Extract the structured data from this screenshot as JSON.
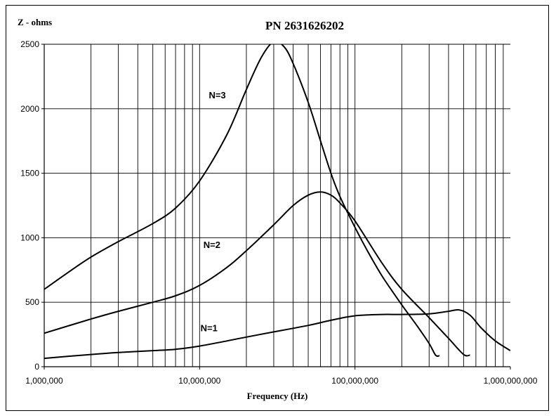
{
  "chart_data": {
    "type": "line",
    "title": "PN 2631626202",
    "xlabel": "Frequency (Hz)",
    "ylabel": "Z - ohms",
    "x_scale": "log",
    "xlim": [
      1000000,
      1000000000
    ],
    "ylim": [
      0,
      2500
    ],
    "x_tick_labels": [
      "1,000,000",
      "10,000,000",
      "100,000,000",
      "1,000,000,000"
    ],
    "y_tick_labels": [
      "0",
      "500",
      "1000",
      "1500",
      "2000",
      "2500"
    ],
    "grid": true,
    "series": [
      {
        "name": "N=3",
        "x": [
          1000000,
          1500000,
          2000000,
          3000000,
          5000000,
          7000000,
          10000000,
          15000000,
          20000000,
          25000000,
          30000000,
          35000000,
          40000000,
          50000000,
          60000000,
          70000000,
          80000000,
          100000000,
          120000000,
          150000000,
          200000000,
          250000000,
          300000000,
          330000000,
          350000000
        ],
        "y": [
          600,
          750,
          850,
          970,
          1110,
          1230,
          1440,
          1800,
          2150,
          2400,
          2520,
          2480,
          2350,
          2050,
          1750,
          1500,
          1320,
          1080,
          900,
          700,
          480,
          320,
          180,
          90,
          85
        ]
      },
      {
        "name": "N=2",
        "x": [
          1000000,
          2000000,
          3000000,
          5000000,
          7000000,
          10000000,
          15000000,
          20000000,
          30000000,
          40000000,
          50000000,
          60000000,
          70000000,
          80000000,
          100000000,
          150000000,
          200000000,
          300000000,
          400000000,
          500000000,
          550000000
        ],
        "y": [
          260,
          370,
          430,
          500,
          550,
          630,
          770,
          900,
          1100,
          1250,
          1330,
          1355,
          1330,
          1270,
          1130,
          800,
          600,
          380,
          220,
          95,
          90
        ]
      },
      {
        "name": "N=1",
        "x": [
          1000000,
          2000000,
          3000000,
          5000000,
          7000000,
          10000000,
          15000000,
          20000000,
          30000000,
          50000000,
          70000000,
          100000000,
          150000000,
          200000000,
          300000000,
          400000000,
          470000000,
          550000000,
          650000000,
          800000000,
          1000000000
        ],
        "y": [
          65,
          95,
          110,
          125,
          135,
          160,
          200,
          230,
          270,
          320,
          360,
          395,
          405,
          405,
          410,
          430,
          440,
          400,
          300,
          200,
          125
        ]
      }
    ],
    "annotations": [
      {
        "text": "N=3",
        "x": 13000000,
        "y": 2080
      },
      {
        "text": "N=2",
        "x": 12000000,
        "y": 920
      },
      {
        "text": "N=1",
        "x": 11500000,
        "y": 275
      }
    ]
  }
}
